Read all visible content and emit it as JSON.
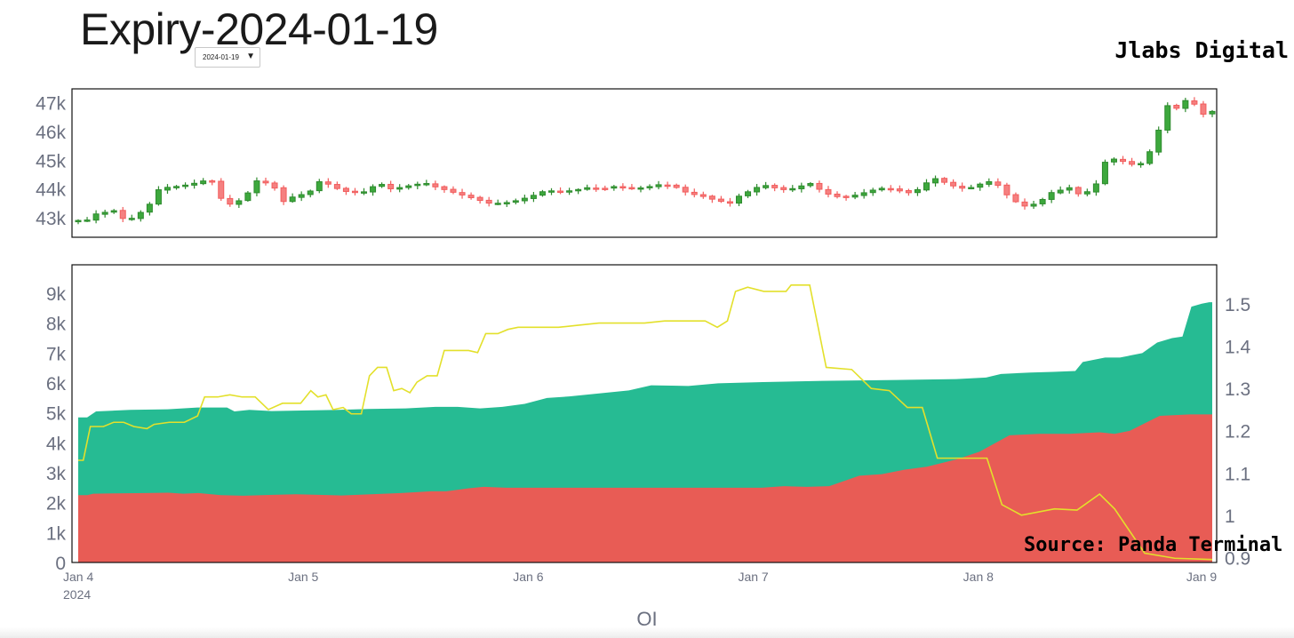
{
  "title": "Expiry-2024-01-19",
  "dropdown": {
    "selected": "2024-01-19",
    "arrow": "▼"
  },
  "brand": "Jlabs Digital",
  "source": "Source: Panda Terminal",
  "colors": {
    "call": "#26bb93",
    "put": "#e85c55",
    "ratio": "#e3e02b",
    "up": "#2e8b2e",
    "down": "#f25c5c",
    "axis_text": "#6b7080"
  },
  "chart_data": [
    {
      "type": "candlestick",
      "ylim": [
        42500,
        47300
      ],
      "yticks": [
        43000,
        44000,
        45000,
        46000,
        47000
      ],
      "yticklabels": [
        "43k",
        "44k",
        "45k",
        "46k",
        "47k"
      ],
      "x_days": [
        0,
        5.03
      ],
      "close_path": [
        [
          0,
          42900
        ],
        [
          0.1,
          42850
        ],
        [
          0.2,
          43100
        ],
        [
          0.3,
          43150
        ],
        [
          0.42,
          43200
        ],
        [
          0.5,
          43250
        ],
        [
          0.6,
          43000
        ],
        [
          0.7,
          42900
        ],
        [
          0.85,
          43100
        ],
        [
          0.95,
          43350
        ],
        [
          1.05,
          43550
        ],
        [
          1.15,
          44050
        ],
        [
          1.25,
          44050
        ],
        [
          1.45,
          44100
        ],
        [
          1.65,
          44200
        ],
        [
          1.8,
          44300
        ],
        [
          1.9,
          44250
        ],
        [
          2.05,
          43500
        ],
        [
          2.2,
          43450
        ],
        [
          2.35,
          43750
        ],
        [
          2.45,
          44000
        ],
        [
          2.55,
          44400
        ],
        [
          2.7,
          44100
        ],
        [
          2.8,
          44000
        ],
        [
          2.9,
          43550
        ],
        [
          3.0,
          43700
        ],
        [
          3.15,
          43800
        ],
        [
          3.3,
          43950
        ],
        [
          3.4,
          44250
        ],
        [
          3.55,
          44150
        ],
        [
          3.7,
          43950
        ],
        [
          3.8,
          43900
        ],
        [
          4.0,
          43850
        ],
        [
          4.1,
          44000
        ],
        [
          4.25,
          44200
        ],
        [
          4.4,
          44000
        ],
        [
          4.55,
          44050
        ],
        [
          4.75,
          44150
        ],
        [
          4.9,
          44200
        ],
        [
          5.0,
          44100
        ],
        [
          5.2,
          43950
        ],
        [
          5.4,
          43800
        ],
        [
          5.6,
          43650
        ],
        [
          5.8,
          43500
        ],
        [
          6.0,
          43500
        ],
        [
          6.2,
          43600
        ],
        [
          6.4,
          43750
        ],
        [
          6.6,
          43950
        ],
        [
          6.8,
          43900
        ],
        [
          7.0,
          43950
        ],
        [
          7.2,
          44050
        ],
        [
          7.4,
          44000
        ],
        [
          7.6,
          44100
        ],
        [
          7.8,
          44000
        ],
        [
          8.0,
          44050
        ],
        [
          8.2,
          44150
        ],
        [
          8.4,
          44100
        ],
        [
          8.6,
          43850
        ],
        [
          8.8,
          43750
        ],
        [
          9.0,
          43600
        ],
        [
          9.2,
          43500
        ],
        [
          9.35,
          43800
        ],
        [
          9.5,
          43950
        ],
        [
          9.65,
          44150
        ],
        [
          9.8,
          44050
        ],
        [
          10.0,
          43950
        ],
        [
          10.2,
          44100
        ],
        [
          10.35,
          44200
        ],
        [
          10.5,
          43900
        ],
        [
          10.65,
          43750
        ],
        [
          10.8,
          43700
        ],
        [
          11.0,
          43800
        ],
        [
          11.2,
          43950
        ],
        [
          11.4,
          44050
        ],
        [
          11.55,
          43950
        ],
        [
          11.75,
          43850
        ],
        [
          11.9,
          44050
        ],
        [
          12.05,
          44400
        ],
        [
          12.2,
          44250
        ],
        [
          12.4,
          44050
        ],
        [
          12.55,
          44000
        ],
        [
          12.7,
          44150
        ],
        [
          12.85,
          44250
        ],
        [
          13.0,
          44100
        ],
        [
          13.15,
          43650
        ],
        [
          13.35,
          43400
        ],
        [
          13.55,
          43500
        ],
        [
          13.7,
          43850
        ],
        [
          13.85,
          43950
        ],
        [
          14.0,
          44050
        ],
        [
          14.15,
          43750
        ],
        [
          14.35,
          44100
        ],
        [
          14.5,
          45000
        ],
        [
          14.65,
          45050
        ],
        [
          14.8,
          44900
        ],
        [
          14.95,
          44800
        ],
        [
          15.05,
          45000
        ],
        [
          15.2,
          45650
        ],
        [
          15.3,
          46550
        ],
        [
          15.4,
          47050
        ],
        [
          15.5,
          46800
        ],
        [
          15.6,
          47100
        ],
        [
          15.7,
          47000
        ],
        [
          15.8,
          46900
        ],
        [
          15.9,
          46500
        ],
        [
          16.0,
          46700
        ]
      ],
      "x_range_days": [
        0,
        5.03
      ]
    },
    {
      "type": "area",
      "xticklabels": [
        "Jan 4",
        "Jan 5",
        "Jan 6",
        "Jan 7",
        "Jan 8",
        "Jan 9"
      ],
      "xticks_days": [
        0,
        1,
        2,
        3,
        4,
        5
      ],
      "year_label": "2024",
      "xlabel": "OI",
      "ylim": [
        0,
        9950
      ],
      "yticks": [
        0,
        1000,
        2000,
        3000,
        4000,
        5000,
        6000,
        7000,
        8000,
        9000
      ],
      "yticklabels": [
        "0",
        "1k",
        "2k",
        "3k",
        "4k",
        "5k",
        "6k",
        "7k",
        "8k",
        "9k"
      ],
      "y2lim": [
        0.888,
        1.593
      ],
      "y2ticks": [
        0.9,
        1,
        1.1,
        1.2,
        1.3,
        1.4,
        1.5
      ],
      "y2ticklabels": [
        "0.9",
        "1",
        "1.1",
        "1.2",
        "1.3",
        "1.4",
        "1.5"
      ],
      "series": [
        {
          "key": "put",
          "points": [
            [
              0,
              2250
            ],
            [
              0.06,
              2250
            ],
            [
              0.1,
              2300
            ],
            [
              0.25,
              2310
            ],
            [
              0.45,
              2320
            ],
            [
              0.6,
              2330
            ],
            [
              0.7,
              2300
            ],
            [
              0.8,
              2320
            ],
            [
              0.95,
              2250
            ],
            [
              1.1,
              2230
            ],
            [
              1.3,
              2260
            ],
            [
              1.45,
              2280
            ],
            [
              1.6,
              2260
            ],
            [
              1.75,
              2240
            ],
            [
              1.95,
              2280
            ],
            [
              2.15,
              2320
            ],
            [
              2.35,
              2380
            ],
            [
              2.45,
              2380
            ],
            [
              2.6,
              2480
            ],
            [
              2.7,
              2530
            ],
            [
              2.85,
              2500
            ],
            [
              3.1,
              2500
            ],
            [
              3.5,
              2500
            ],
            [
              4.1,
              2500
            ],
            [
              4.4,
              2500
            ],
            [
              4.55,
              2500
            ],
            [
              4.7,
              2550
            ],
            [
              4.85,
              2530
            ],
            [
              5.0,
              2550
            ],
            [
              5.2,
              2900
            ],
            [
              5.35,
              2950
            ],
            [
              5.5,
              3100
            ],
            [
              5.65,
              3200
            ],
            [
              5.85,
              3450
            ],
            [
              6.0,
              3700
            ],
            [
              6.2,
              4250
            ],
            [
              6.4,
              4300
            ],
            [
              6.6,
              4300
            ],
            [
              6.8,
              4350
            ],
            [
              6.9,
              4300
            ],
            [
              7.0,
              4400
            ],
            [
              7.2,
              4900
            ],
            [
              7.4,
              4950
            ],
            [
              7.55,
              4950
            ]
          ],
          "x_map": "custom"
        }
      ]
    }
  ]
}
